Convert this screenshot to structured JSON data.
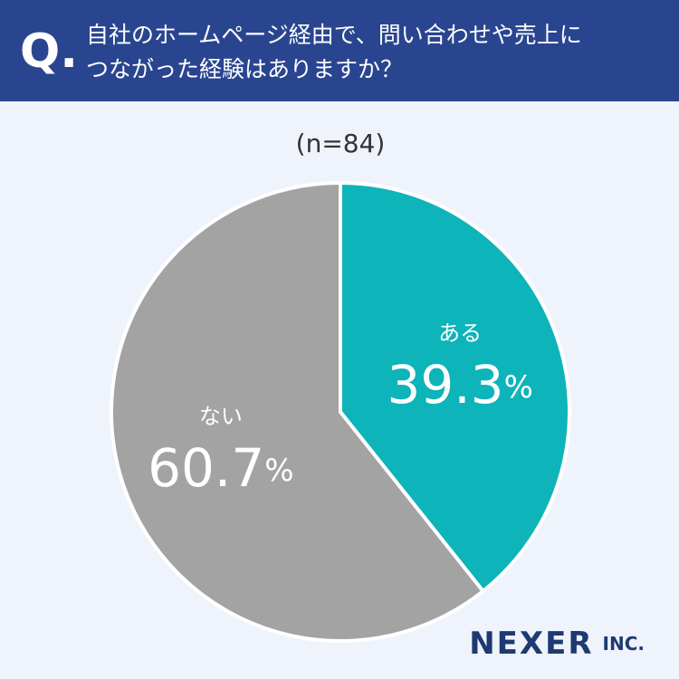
{
  "question_marker": "Q.",
  "chart_data": {
    "type": "pie",
    "title": [
      "自社のホームページ経由で、問い合わせや売上に",
      "つながった経験はありますか？"
    ],
    "subtitle": "(n=84)",
    "categories": [
      "ある",
      "ない"
    ],
    "values": [
      39.3,
      60.7
    ],
    "value_labels": [
      "39.3%",
      "60.7%"
    ],
    "colors": [
      "#0db4b9",
      "#a3a3a3"
    ]
  },
  "brand": {
    "name": "NEXER",
    "suffix": "INC."
  }
}
